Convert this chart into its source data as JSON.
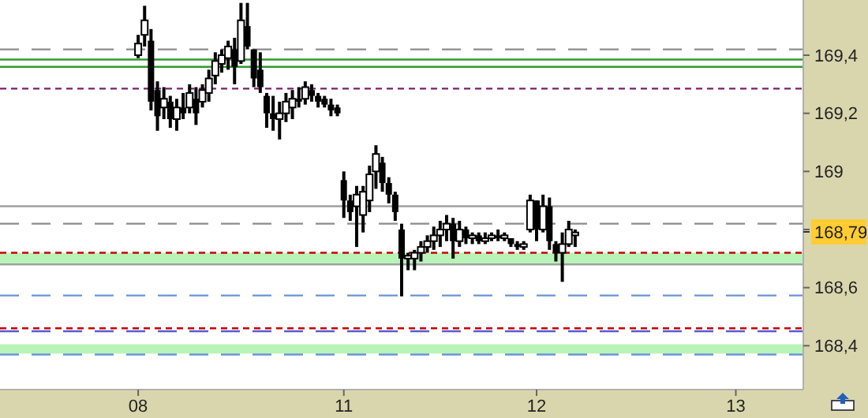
{
  "chart_data": {
    "type": "candlestick",
    "categories": [
      null,
      null,
      null,
      null,
      null,
      null,
      null,
      null,
      null,
      null,
      null,
      null,
      null,
      null,
      null,
      null,
      null,
      null,
      null,
      null,
      null,
      "08",
      null,
      null,
      null,
      null,
      null,
      null,
      null,
      null,
      null,
      null,
      null,
      null,
      null,
      null,
      null,
      null,
      null,
      null,
      null,
      null,
      null,
      null,
      null,
      null,
      null,
      null,
      null,
      null,
      null,
      null,
      null,
      "11",
      null,
      null,
      null,
      null,
      null,
      null,
      null,
      null,
      null,
      null,
      null,
      null,
      null,
      null,
      null,
      null,
      null,
      null,
      null,
      null,
      null,
      null,
      null,
      null,
      null,
      null,
      null,
      null,
      null,
      "12",
      null,
      null,
      null,
      null,
      null,
      null,
      null,
      null,
      null,
      null,
      null,
      null,
      null,
      null,
      null,
      null,
      null,
      null,
      null,
      null,
      null,
      null,
      null,
      null,
      null,
      null,
      null,
      null,
      null,
      null,
      "13",
      null,
      null,
      null,
      null,
      null,
      null,
      null,
      null,
      null,
      null
    ],
    "ohlc": [
      null,
      null,
      null,
      null,
      null,
      null,
      null,
      null,
      null,
      null,
      null,
      null,
      null,
      null,
      null,
      null,
      null,
      null,
      null,
      null,
      null,
      [
        169.4,
        169.47,
        169.39,
        169.44
      ],
      [
        169.47,
        169.57,
        169.43,
        169.52
      ],
      [
        169.45,
        169.49,
        169.21,
        169.24
      ],
      [
        169.28,
        169.31,
        169.14,
        169.19
      ],
      [
        169.22,
        169.29,
        169.18,
        169.25
      ],
      [
        169.24,
        169.26,
        169.15,
        169.18
      ],
      [
        169.18,
        169.25,
        169.14,
        169.22
      ],
      [
        169.22,
        169.27,
        169.18,
        169.2
      ],
      [
        169.22,
        169.3,
        169.2,
        169.27
      ],
      [
        169.25,
        169.29,
        169.16,
        169.2
      ],
      [
        169.24,
        169.3,
        169.22,
        169.28
      ],
      [
        169.27,
        169.35,
        169.24,
        169.32
      ],
      [
        169.33,
        169.41,
        169.3,
        169.38
      ],
      [
        169.37,
        169.42,
        169.34,
        169.4
      ],
      [
        169.39,
        169.45,
        169.35,
        169.43
      ],
      [
        169.42,
        169.46,
        169.3,
        169.36
      ],
      [
        169.38,
        169.58,
        169.37,
        169.52
      ],
      [
        169.5,
        169.58,
        169.42,
        169.43
      ],
      [
        169.42,
        169.42,
        169.29,
        169.32
      ],
      [
        169.35,
        169.41,
        169.27,
        169.29
      ],
      [
        169.26,
        169.27,
        169.15,
        169.2
      ],
      [
        169.2,
        169.26,
        169.14,
        169.18
      ],
      [
        169.18,
        169.24,
        169.11,
        169.2
      ],
      [
        169.2,
        169.27,
        169.17,
        169.24
      ],
      [
        169.22,
        169.28,
        169.18,
        169.25
      ],
      [
        169.25,
        169.29,
        169.22,
        169.24
      ],
      [
        169.25,
        169.31,
        169.23,
        169.29
      ],
      [
        169.28,
        169.3,
        169.24,
        169.26
      ],
      [
        169.26,
        169.27,
        169.22,
        169.24
      ],
      [
        169.25,
        169.26,
        169.22,
        169.23
      ],
      [
        169.23,
        169.25,
        169.19,
        169.21
      ],
      [
        169.22,
        169.23,
        169.19,
        169.2
      ],
      [
        168.97,
        169.0,
        168.84,
        168.9
      ],
      [
        168.9,
        168.92,
        168.83,
        168.86
      ],
      [
        168.88,
        168.95,
        168.74,
        168.92
      ],
      [
        168.85,
        168.95,
        168.79,
        168.93
      ],
      [
        168.9,
        169.02,
        168.86,
        168.99
      ],
      [
        169.0,
        169.09,
        168.94,
        169.06
      ],
      [
        169.03,
        169.05,
        168.93,
        168.96
      ],
      [
        168.96,
        168.98,
        168.89,
        168.92
      ],
      [
        168.92,
        168.93,
        168.83,
        168.86
      ],
      [
        168.8,
        168.82,
        168.57,
        168.7
      ],
      [
        168.7,
        168.72,
        168.66,
        168.71
      ],
      [
        168.7,
        168.73,
        168.66,
        168.72
      ],
      [
        168.72,
        168.76,
        168.69,
        168.74
      ],
      [
        168.74,
        168.78,
        168.72,
        168.76
      ],
      [
        168.76,
        168.81,
        168.73,
        168.78
      ],
      [
        168.78,
        168.83,
        168.74,
        168.8
      ],
      [
        168.8,
        168.85,
        168.76,
        168.82
      ],
      [
        168.82,
        168.84,
        168.7,
        168.76
      ],
      [
        168.76,
        168.83,
        168.74,
        168.8
      ],
      [
        168.8,
        168.81,
        168.75,
        168.77
      ],
      [
        168.77,
        168.79,
        168.75,
        168.78
      ],
      [
        168.78,
        168.79,
        168.75,
        168.76
      ],
      [
        168.76,
        168.79,
        168.75,
        168.77
      ],
      [
        168.77,
        168.79,
        168.76,
        168.78
      ],
      [
        168.78,
        168.8,
        168.76,
        168.77
      ],
      [
        168.77,
        168.79,
        168.76,
        168.78
      ],
      [
        168.77,
        168.77,
        168.74,
        168.75
      ],
      [
        168.75,
        168.76,
        168.73,
        168.74
      ],
      [
        168.74,
        168.76,
        168.73,
        168.75
      ],
      [
        168.8,
        168.92,
        168.79,
        168.9
      ],
      [
        168.9,
        168.9,
        168.76,
        168.8
      ],
      [
        168.8,
        168.92,
        168.79,
        168.88
      ],
      [
        168.88,
        168.91,
        168.73,
        168.76
      ],
      [
        168.75,
        168.76,
        168.69,
        168.72
      ],
      [
        168.72,
        168.79,
        168.62,
        168.75
      ],
      [
        168.75,
        168.83,
        168.74,
        168.8
      ],
      [
        168.78,
        168.8,
        168.74,
        168.79
      ],
      null,
      null,
      null,
      null,
      null,
      null,
      null,
      null,
      null,
      null,
      null,
      null,
      null,
      null,
      null,
      null,
      null,
      null,
      null,
      null,
      null,
      null,
      null,
      null,
      null,
      null,
      null,
      null,
      null,
      null,
      null,
      null,
      null,
      null,
      null
    ],
    "ylim": [
      168.249,
      169.59
    ],
    "yticks": [
      {
        "value": 168.4,
        "label": "168,4"
      },
      {
        "value": 168.6,
        "label": "168,6"
      },
      {
        "value": 168.8,
        "label": null
      },
      {
        "value": 169,
        "label": "169"
      },
      {
        "value": 169.2,
        "label": "169,2"
      },
      {
        "value": 169.4,
        "label": "169,4"
      }
    ],
    "ref_lines": [
      {
        "axis": "y",
        "value": 169.42,
        "color": "#8c8c8c",
        "line_style": "dashed"
      },
      {
        "axis": "y",
        "value": 169.385,
        "color": "#2e9b2e",
        "line_style": "solid"
      },
      {
        "axis": "y",
        "value": 169.36,
        "color": "#2e9b2e",
        "line_style": "solid"
      },
      {
        "axis": "y",
        "value": 169.285,
        "color": "#7a1f6e",
        "line_style": "dotted"
      },
      {
        "axis": "y",
        "value": 168.88,
        "color": "#a0a0a0",
        "line_style": "solid"
      },
      {
        "axis": "y",
        "value": 168.82,
        "color": "#8c8c8c",
        "line_style": "dashed"
      },
      {
        "axis": "y",
        "value": 168.72,
        "color": "#cc0000",
        "line_style": "dotted"
      },
      {
        "axis": "y",
        "value": 168.68,
        "color": "#a0a0a0",
        "line_style": "solid"
      },
      {
        "axis": "y",
        "value": 168.573,
        "color": "#6a93d4",
        "line_style": "dashed"
      },
      {
        "axis": "y",
        "value": 168.46,
        "color": "#cc0000",
        "line_style": "dotted"
      },
      {
        "axis": "y",
        "value": 168.45,
        "color": "#5a5ad0",
        "line_style": "dashed"
      },
      {
        "axis": "y",
        "value": 168.37,
        "color": "#6a93d4",
        "line_style": "dashed"
      }
    ],
    "bands": [
      {
        "axis": "y",
        "from": 168.68,
        "to": 168.72,
        "color": "#b8f4b8"
      },
      {
        "axis": "y",
        "from": 168.373,
        "to": 168.405,
        "color": "#b8f4b8"
      }
    ],
    "annotations": [
      "168,79"
    ]
  }
}
